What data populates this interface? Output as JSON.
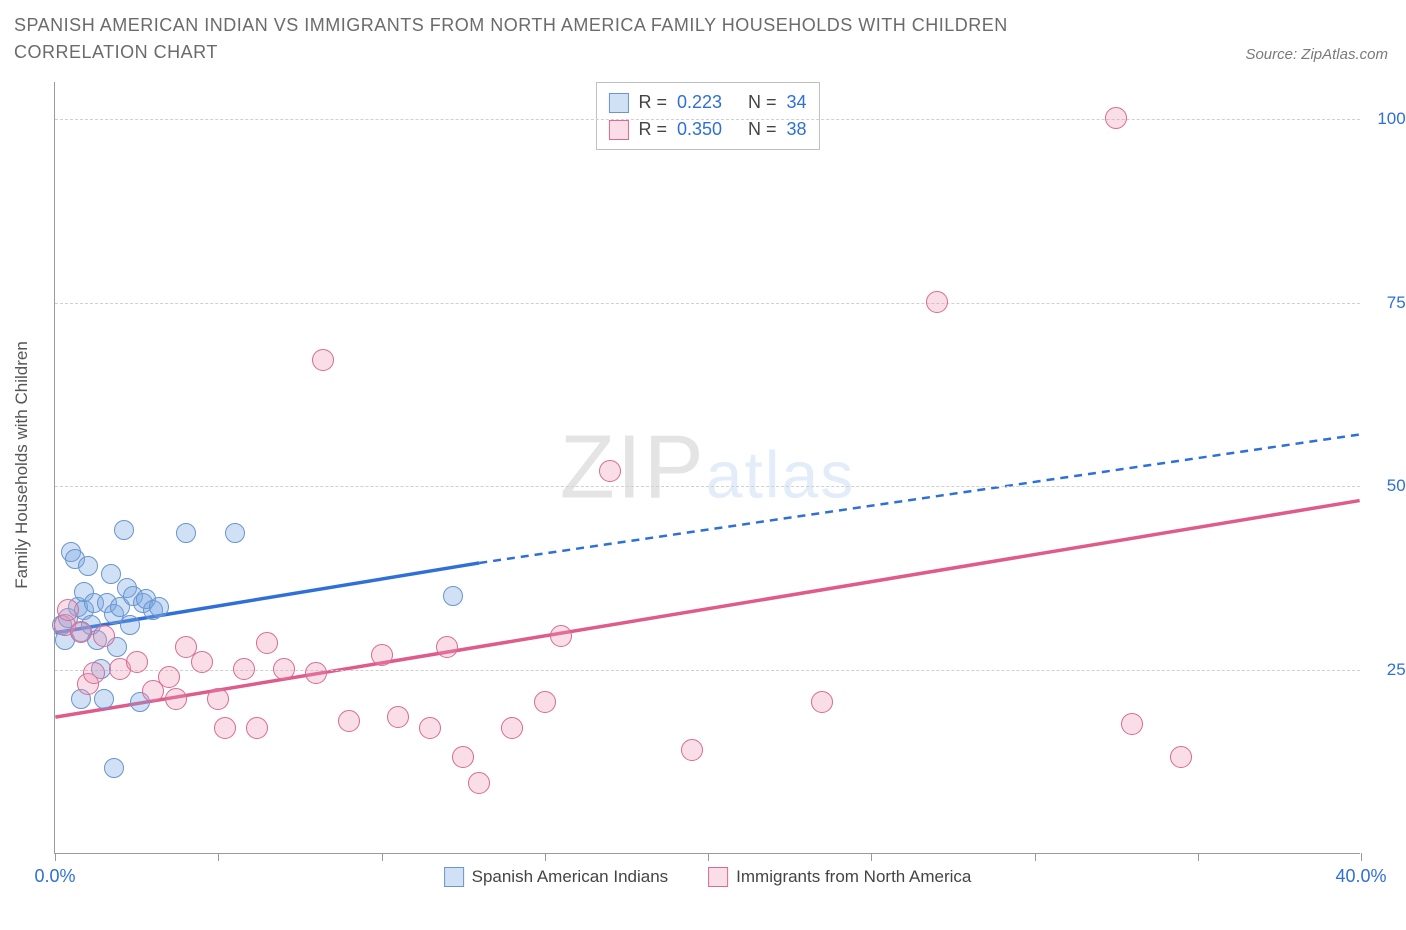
{
  "title": "SPANISH AMERICAN INDIAN VS IMMIGRANTS FROM NORTH AMERICA FAMILY HOUSEHOLDS WITH CHILDREN CORRELATION CHART",
  "source": "Source: ZipAtlas.com",
  "y_axis_title": "Family Households with Children",
  "watermark_a": "ZIP",
  "watermark_b": "atlas",
  "chart": {
    "type": "scatter",
    "xlim": [
      0,
      40
    ],
    "ylim": [
      0,
      105
    ],
    "x_ticks": [
      0,
      5,
      10,
      15,
      20,
      25,
      30,
      35,
      40
    ],
    "x_tick_labels": {
      "0": "0.0%",
      "40": "40.0%"
    },
    "y_grid": [
      25,
      50,
      75,
      100
    ],
    "y_tick_labels": {
      "25": "25.0%",
      "50": "50.0%",
      "75": "75.0%",
      "100": "100.0%"
    },
    "grid_color": "#d0d0d0",
    "background_color": "#ffffff",
    "axis_color": "#9a9a9a",
    "tick_label_color": "#2f6fd8",
    "series": [
      {
        "name": "Spanish American Indians",
        "legend_label": "Spanish American Indians",
        "fill": "rgba(120, 165, 225, 0.35)",
        "stroke": "#6a95cf",
        "line_color": "#2f6fd8",
        "marker_radius": 10,
        "R": "0.223",
        "N": "34",
        "trend_solid": {
          "x1": 0,
          "y1": 30,
          "x2": 13,
          "y2": 39.5
        },
        "trend_dash": {
          "x1": 13,
          "y1": 39.5,
          "x2": 40,
          "y2": 57
        },
        "points": [
          [
            0.2,
            31
          ],
          [
            0.3,
            29
          ],
          [
            0.4,
            32
          ],
          [
            0.5,
            41
          ],
          [
            0.6,
            40
          ],
          [
            0.7,
            33.5
          ],
          [
            0.8,
            30
          ],
          [
            0.9,
            33
          ],
          [
            0.9,
            35.5
          ],
          [
            1.0,
            39
          ],
          [
            1.1,
            31
          ],
          [
            1.2,
            34
          ],
          [
            1.3,
            29
          ],
          [
            1.4,
            25
          ],
          [
            1.5,
            21
          ],
          [
            1.6,
            34
          ],
          [
            1.7,
            38
          ],
          [
            1.8,
            32.5
          ],
          [
            1.9,
            28
          ],
          [
            2.0,
            33.5
          ],
          [
            2.1,
            44
          ],
          [
            2.2,
            36
          ],
          [
            2.3,
            31
          ],
          [
            2.4,
            35
          ],
          [
            2.6,
            20.5
          ],
          [
            2.7,
            34
          ],
          [
            2.8,
            34.5
          ],
          [
            3.0,
            33
          ],
          [
            3.2,
            33.5
          ],
          [
            4.0,
            43.5
          ],
          [
            5.5,
            43.5
          ],
          [
            1.8,
            11.5
          ],
          [
            0.8,
            21
          ],
          [
            12.2,
            35
          ]
        ]
      },
      {
        "name": "Immigrants from North America",
        "legend_label": "Immigrants from North America",
        "fill": "rgba(235, 150, 180, 0.32)",
        "stroke": "#d86a94",
        "line_color": "#de5b8a",
        "marker_radius": 11,
        "R": "0.350",
        "N": "38",
        "trend_solid": {
          "x1": 0,
          "y1": 18.5,
          "x2": 40,
          "y2": 48
        },
        "trend_dash": null,
        "points": [
          [
            0.3,
            31
          ],
          [
            0.4,
            33
          ],
          [
            0.8,
            30
          ],
          [
            1.0,
            23
          ],
          [
            1.2,
            24.5
          ],
          [
            1.5,
            29.5
          ],
          [
            2.0,
            25
          ],
          [
            2.5,
            26
          ],
          [
            3.0,
            22
          ],
          [
            3.5,
            24
          ],
          [
            3.7,
            21
          ],
          [
            4.0,
            28
          ],
          [
            4.5,
            26
          ],
          [
            5.0,
            21
          ],
          [
            5.2,
            17
          ],
          [
            5.8,
            25
          ],
          [
            6.2,
            17
          ],
          [
            6.5,
            28.5
          ],
          [
            7.0,
            25
          ],
          [
            8.0,
            24.5
          ],
          [
            8.2,
            67
          ],
          [
            9.0,
            18
          ],
          [
            10.0,
            27
          ],
          [
            10.5,
            18.5
          ],
          [
            11.5,
            17
          ],
          [
            12.0,
            28
          ],
          [
            12.5,
            13
          ],
          [
            13.0,
            9.5
          ],
          [
            14.0,
            17
          ],
          [
            15.0,
            20.5
          ],
          [
            15.5,
            29.5
          ],
          [
            17.0,
            52
          ],
          [
            19.5,
            14
          ],
          [
            23.5,
            20.5
          ],
          [
            27.0,
            75
          ],
          [
            32.5,
            100
          ],
          [
            33.0,
            17.5
          ],
          [
            34.5,
            13
          ]
        ]
      }
    ],
    "legend_stats_labels": {
      "R": "R =",
      "N": "N ="
    }
  }
}
